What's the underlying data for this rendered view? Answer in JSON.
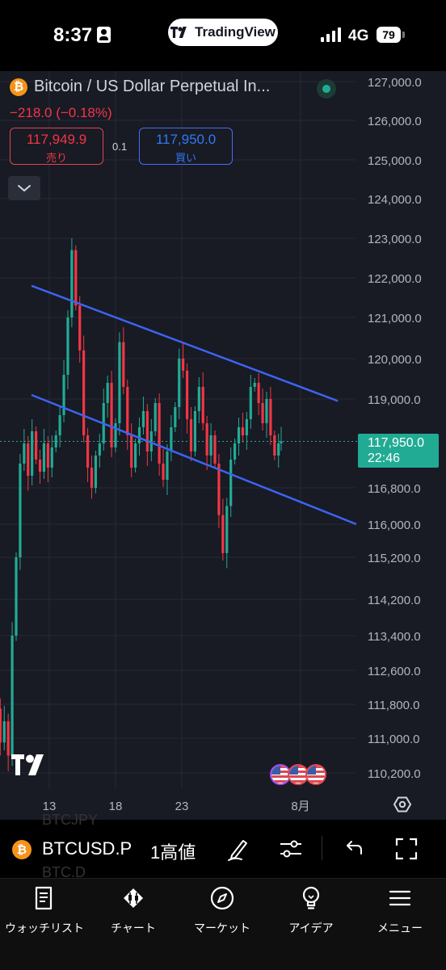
{
  "status_bar": {
    "time": "8:37",
    "network": "4G",
    "battery": "79"
  },
  "app_pill": {
    "label": "TradingView"
  },
  "symbol": {
    "name": "Bitcoin / US Dollar Perpetual In...",
    "change": "−218.0 (−0.18%)",
    "sell_price": "117,949.9",
    "sell_label": "売り",
    "spread": "0.1",
    "buy_price": "117,950.0",
    "buy_label": "買い"
  },
  "chart_data": {
    "type": "candlestick",
    "y_axis_labels": [
      "127,000.0",
      "126,000.0",
      "125,000.0",
      "124,000.0",
      "123,000.0",
      "122,000.0",
      "121,000.0",
      "120,000.0",
      "119,000.0",
      "116,800.0",
      "116,000.0",
      "115,200.0",
      "114,200.0",
      "113,400.0",
      "112,600.0",
      "111,800.0",
      "111,000.0",
      "110,200.0"
    ],
    "x_axis_labels": [
      "13",
      "18",
      "23",
      "8月"
    ],
    "current_price": "117,950.0",
    "countdown": "22:46",
    "trendlines": [
      {
        "from": [
          -22,
          121800
        ],
        "to": [
          94,
          118950
        ],
        "color": "#3c64f0"
      },
      {
        "from": [
          -22,
          119100
        ],
        "to": [
          100,
          116000
        ],
        "color": "#3c64f0"
      }
    ],
    "up_color": "#22ab94",
    "down_color": "#f23645"
  },
  "symbol_bar": {
    "ghost_top": "BTCJPY",
    "symbol": "BTCUSD.P",
    "interval": "1高値",
    "ghost_bottom": "BTC.D"
  },
  "nav": [
    {
      "label": "ウォッチリスト",
      "icon": "watchlist-icon"
    },
    {
      "label": "チャート",
      "icon": "chart-icon"
    },
    {
      "label": "マーケット",
      "icon": "compass-icon"
    },
    {
      "label": "アイデア",
      "icon": "lightbulb-icon"
    },
    {
      "label": "メニュー",
      "icon": "menu-icon"
    }
  ]
}
